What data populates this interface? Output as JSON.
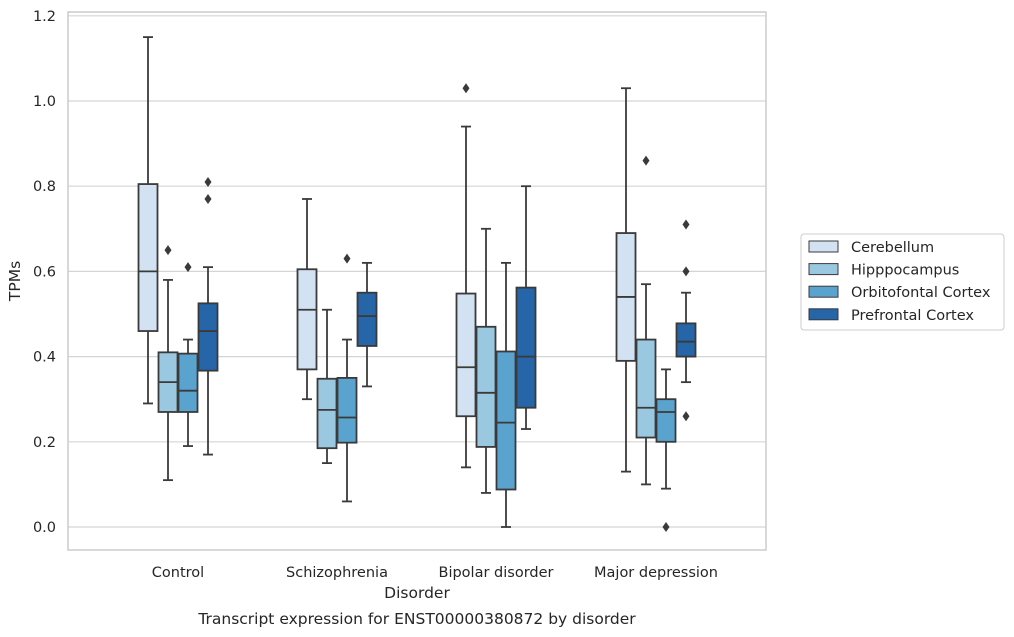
{
  "chart_data": {
    "type": "box",
    "title": "",
    "caption": "Transcript expression for ENST00000380872 by disorder",
    "xlabel": "Disorder",
    "ylabel": "TPMs",
    "ylim": [
      -0.055,
      1.21
    ],
    "yticks": [
      "0.0",
      "0.2",
      "0.4",
      "0.6",
      "0.8",
      "1.0",
      "1.2"
    ],
    "grid": "horizontal",
    "legend_position": "right",
    "categories": [
      "Control",
      "Schizophrenia",
      "Bipolar disorder",
      "Major depression"
    ],
    "series": [
      {
        "name": "Cerebellum",
        "color": "#d2e2f2",
        "boxes": [
          {
            "whislo": 0.29,
            "q1": 0.46,
            "med": 0.6,
            "q3": 0.805,
            "whishi": 1.15,
            "fliers": []
          },
          {
            "whislo": 0.3,
            "q1": 0.37,
            "med": 0.51,
            "q3": 0.605,
            "whishi": 0.77,
            "fliers": []
          },
          {
            "whislo": 0.14,
            "q1": 0.26,
            "med": 0.375,
            "q3": 0.548,
            "whishi": 0.94,
            "fliers": [
              1.03
            ]
          },
          {
            "whislo": 0.13,
            "q1": 0.39,
            "med": 0.54,
            "q3": 0.69,
            "whishi": 1.03,
            "fliers": []
          }
        ]
      },
      {
        "name": "Hipppocampus",
        "color": "#9ac8e0",
        "boxes": [
          {
            "whislo": 0.11,
            "q1": 0.27,
            "med": 0.34,
            "q3": 0.41,
            "whishi": 0.58,
            "fliers": [
              0.65
            ]
          },
          {
            "whislo": 0.15,
            "q1": 0.185,
            "med": 0.275,
            "q3": 0.348,
            "whishi": 0.51,
            "fliers": []
          },
          {
            "whislo": 0.08,
            "q1": 0.188,
            "med": 0.315,
            "q3": 0.47,
            "whishi": 0.7,
            "fliers": []
          },
          {
            "whislo": 0.1,
            "q1": 0.21,
            "med": 0.28,
            "q3": 0.44,
            "whishi": 0.57,
            "fliers": [
              0.86
            ]
          }
        ]
      },
      {
        "name": "Orbitofontal Cortex",
        "color": "#5ba3cf",
        "boxes": [
          {
            "whislo": 0.19,
            "q1": 0.27,
            "med": 0.32,
            "q3": 0.407,
            "whishi": 0.44,
            "fliers": [
              0.61
            ]
          },
          {
            "whislo": 0.06,
            "q1": 0.198,
            "med": 0.257,
            "q3": 0.35,
            "whishi": 0.44,
            "fliers": [
              0.63
            ]
          },
          {
            "whislo": 0.0,
            "q1": 0.088,
            "med": 0.245,
            "q3": 0.412,
            "whishi": 0.62,
            "fliers": []
          },
          {
            "whislo": 0.09,
            "q1": 0.2,
            "med": 0.27,
            "q3": 0.3,
            "whishi": 0.37,
            "fliers": [
              0.0
            ]
          }
        ]
      },
      {
        "name": "Prefrontal Cortex",
        "color": "#2565a8",
        "boxes": [
          {
            "whislo": 0.17,
            "q1": 0.367,
            "med": 0.46,
            "q3": 0.525,
            "whishi": 0.61,
            "fliers": [
              0.77,
              0.81
            ]
          },
          {
            "whislo": 0.33,
            "q1": 0.425,
            "med": 0.495,
            "q3": 0.55,
            "whishi": 0.62,
            "fliers": []
          },
          {
            "whislo": 0.23,
            "q1": 0.28,
            "med": 0.4,
            "q3": 0.562,
            "whishi": 0.8,
            "fliers": []
          },
          {
            "whislo": 0.34,
            "q1": 0.4,
            "med": 0.435,
            "q3": 0.478,
            "whishi": 0.55,
            "fliers": [
              0.26,
              0.6,
              0.71
            ]
          }
        ]
      }
    ]
  }
}
